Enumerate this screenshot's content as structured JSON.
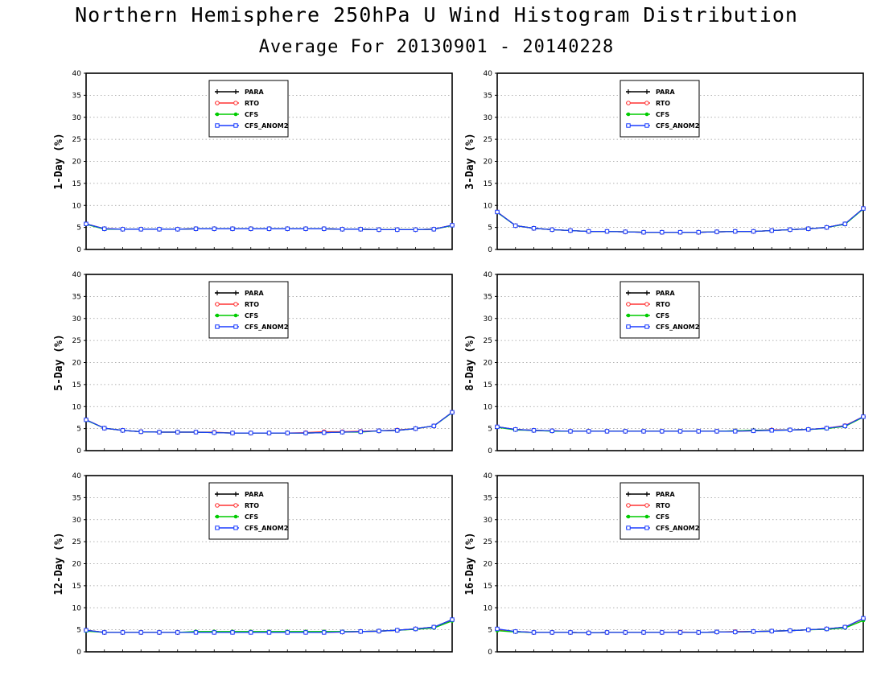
{
  "header": {
    "title": "Northern Hemisphere 250hPa U Wind Histogram Distribution",
    "subtitle": "Average For 20130901 - 20140228"
  },
  "legend_entries": [
    {
      "name": "PARA",
      "color": "#000000",
      "marker": "plus"
    },
    {
      "name": "RTO",
      "color": "#ff3333",
      "marker": "open-circle"
    },
    {
      "name": "CFS",
      "color": "#00cc00",
      "marker": "filled-circle"
    },
    {
      "name": "CFS_ANOM2",
      "color": "#1a3cff",
      "marker": "open-square"
    }
  ],
  "chart_data": [
    {
      "type": "line",
      "ylabel": "1-Day (%)",
      "ylim": [
        0,
        40
      ],
      "yticks": [
        0,
        5,
        10,
        15,
        20,
        25,
        30,
        35,
        40
      ],
      "grid": "horizontal-dotted",
      "legend_position": "top-center",
      "x": [
        1,
        2,
        3,
        4,
        5,
        6,
        7,
        8,
        9,
        10,
        11,
        12,
        13,
        14,
        15,
        16,
        17,
        18,
        19,
        20,
        21
      ],
      "series": [
        {
          "name": "PARA",
          "values": [
            5.8,
            4.7,
            4.6,
            4.6,
            4.6,
            4.6,
            4.7,
            4.7,
            4.7,
            4.7,
            4.7,
            4.7,
            4.7,
            4.7,
            4.6,
            4.6,
            4.5,
            4.5,
            4.5,
            4.6,
            5.5
          ]
        },
        {
          "name": "RTO",
          "values": [
            5.8,
            4.7,
            4.6,
            4.6,
            4.6,
            4.6,
            4.7,
            4.7,
            4.7,
            4.7,
            4.7,
            4.7,
            4.7,
            4.7,
            4.6,
            4.6,
            4.5,
            4.5,
            4.5,
            4.6,
            5.5
          ]
        },
        {
          "name": "CFS",
          "values": [
            5.7,
            4.6,
            4.6,
            4.6,
            4.6,
            4.6,
            4.7,
            4.7,
            4.7,
            4.7,
            4.7,
            4.7,
            4.7,
            4.7,
            4.6,
            4.6,
            4.5,
            4.5,
            4.5,
            4.6,
            5.4
          ]
        },
        {
          "name": "CFS_ANOM2",
          "values": [
            5.8,
            4.7,
            4.6,
            4.6,
            4.6,
            4.6,
            4.7,
            4.7,
            4.7,
            4.7,
            4.7,
            4.7,
            4.7,
            4.7,
            4.6,
            4.6,
            4.5,
            4.5,
            4.5,
            4.6,
            5.5
          ]
        }
      ]
    },
    {
      "type": "line",
      "ylabel": "3-Day (%)",
      "ylim": [
        0,
        40
      ],
      "yticks": [
        0,
        5,
        10,
        15,
        20,
        25,
        30,
        35,
        40
      ],
      "grid": "horizontal-dotted",
      "legend_position": "top-center",
      "x": [
        1,
        2,
        3,
        4,
        5,
        6,
        7,
        8,
        9,
        10,
        11,
        12,
        13,
        14,
        15,
        16,
        17,
        18,
        19,
        20,
        21
      ],
      "series": [
        {
          "name": "PARA",
          "values": [
            8.5,
            5.4,
            4.8,
            4.5,
            4.3,
            4.1,
            4.1,
            4.0,
            3.9,
            3.9,
            3.9,
            3.9,
            4.0,
            4.1,
            4.1,
            4.3,
            4.5,
            4.7,
            5.0,
            5.8,
            9.3
          ]
        },
        {
          "name": "RTO",
          "values": [
            8.5,
            5.4,
            4.8,
            4.5,
            4.3,
            4.1,
            4.1,
            4.0,
            3.9,
            3.9,
            3.9,
            3.9,
            4.0,
            4.1,
            4.1,
            4.3,
            4.5,
            4.7,
            5.0,
            5.8,
            9.3
          ]
        },
        {
          "name": "CFS",
          "values": [
            8.4,
            5.4,
            4.8,
            4.5,
            4.3,
            4.1,
            4.1,
            4.0,
            3.9,
            3.9,
            3.9,
            3.9,
            4.0,
            4.1,
            4.1,
            4.3,
            4.5,
            4.7,
            5.0,
            5.7,
            9.2
          ]
        },
        {
          "name": "CFS_ANOM2",
          "values": [
            8.5,
            5.4,
            4.8,
            4.5,
            4.3,
            4.1,
            4.1,
            4.0,
            3.9,
            3.9,
            3.9,
            3.9,
            4.0,
            4.1,
            4.1,
            4.3,
            4.5,
            4.7,
            5.0,
            5.8,
            9.3
          ]
        }
      ]
    },
    {
      "type": "line",
      "ylabel": "5-Day (%)",
      "ylim": [
        0,
        40
      ],
      "yticks": [
        0,
        5,
        10,
        15,
        20,
        25,
        30,
        35,
        40
      ],
      "grid": "horizontal-dotted",
      "legend_position": "top-center",
      "x": [
        1,
        2,
        3,
        4,
        5,
        6,
        7,
        8,
        9,
        10,
        11,
        12,
        13,
        14,
        15,
        16,
        17,
        18,
        19,
        20,
        21
      ],
      "series": [
        {
          "name": "PARA",
          "values": [
            7.0,
            5.1,
            4.6,
            4.3,
            4.2,
            4.2,
            4.2,
            4.1,
            4.0,
            4.0,
            4.0,
            4.0,
            4.0,
            4.1,
            4.2,
            4.3,
            4.5,
            4.6,
            5.0,
            5.6,
            8.7
          ]
        },
        {
          "name": "RTO",
          "values": [
            7.0,
            5.1,
            4.6,
            4.3,
            4.2,
            4.2,
            4.2,
            4.2,
            4.0,
            4.0,
            4.0,
            4.0,
            4.1,
            4.3,
            4.3,
            4.4,
            4.5,
            4.7,
            5.0,
            5.6,
            8.7
          ]
        },
        {
          "name": "CFS",
          "values": [
            6.9,
            5.1,
            4.6,
            4.3,
            4.2,
            4.2,
            4.2,
            4.1,
            4.0,
            4.0,
            4.0,
            4.0,
            4.0,
            4.1,
            4.2,
            4.2,
            4.5,
            4.6,
            5.0,
            5.6,
            8.6
          ]
        },
        {
          "name": "CFS_ANOM2",
          "values": [
            7.0,
            5.1,
            4.6,
            4.3,
            4.2,
            4.2,
            4.2,
            4.1,
            4.0,
            4.0,
            4.0,
            4.0,
            4.0,
            4.1,
            4.2,
            4.3,
            4.5,
            4.6,
            5.0,
            5.6,
            8.7
          ]
        }
      ]
    },
    {
      "type": "line",
      "ylabel": "8-Day (%)",
      "ylim": [
        0,
        40
      ],
      "yticks": [
        0,
        5,
        10,
        15,
        20,
        25,
        30,
        35,
        40
      ],
      "grid": "horizontal-dotted",
      "legend_position": "top-center",
      "x": [
        1,
        2,
        3,
        4,
        5,
        6,
        7,
        8,
        9,
        10,
        11,
        12,
        13,
        14,
        15,
        16,
        17,
        18,
        19,
        20,
        21
      ],
      "series": [
        {
          "name": "PARA",
          "values": [
            5.4,
            4.8,
            4.6,
            4.5,
            4.4,
            4.4,
            4.4,
            4.4,
            4.4,
            4.4,
            4.4,
            4.4,
            4.4,
            4.5,
            4.6,
            4.7,
            4.7,
            4.8,
            5.1,
            5.6,
            7.7
          ]
        },
        {
          "name": "RTO",
          "values": [
            5.4,
            4.8,
            4.6,
            4.5,
            4.4,
            4.4,
            4.4,
            4.4,
            4.4,
            4.4,
            4.4,
            4.4,
            4.4,
            4.4,
            4.5,
            4.7,
            4.7,
            4.8,
            5.1,
            5.7,
            7.7
          ]
        },
        {
          "name": "CFS",
          "values": [
            5.3,
            4.7,
            4.6,
            4.4,
            4.4,
            4.4,
            4.4,
            4.4,
            4.4,
            4.4,
            4.4,
            4.4,
            4.4,
            4.5,
            4.6,
            4.6,
            4.7,
            4.8,
            5.0,
            5.5,
            7.6
          ]
        },
        {
          "name": "CFS_ANOM2",
          "values": [
            5.4,
            4.8,
            4.6,
            4.5,
            4.4,
            4.4,
            4.4,
            4.4,
            4.4,
            4.4,
            4.4,
            4.4,
            4.4,
            4.4,
            4.5,
            4.6,
            4.7,
            4.8,
            5.1,
            5.6,
            7.7
          ]
        }
      ]
    },
    {
      "type": "line",
      "ylabel": "12-Day (%)",
      "ylim": [
        0,
        40
      ],
      "yticks": [
        0,
        5,
        10,
        15,
        20,
        25,
        30,
        35,
        40
      ],
      "grid": "horizontal-dotted",
      "legend_position": "top-center",
      "x": [
        1,
        2,
        3,
        4,
        5,
        6,
        7,
        8,
        9,
        10,
        11,
        12,
        13,
        14,
        15,
        16,
        17,
        18,
        19,
        20,
        21
      ],
      "series": [
        {
          "name": "PARA",
          "values": [
            4.9,
            4.4,
            4.4,
            4.4,
            4.4,
            4.4,
            4.5,
            4.5,
            4.5,
            4.5,
            4.5,
            4.5,
            4.5,
            4.5,
            4.5,
            4.6,
            4.7,
            4.9,
            5.2,
            5.6,
            7.3
          ]
        },
        {
          "name": "RTO",
          "values": [
            4.9,
            4.4,
            4.4,
            4.4,
            4.4,
            4.4,
            4.4,
            4.4,
            4.4,
            4.4,
            4.4,
            4.4,
            4.4,
            4.4,
            4.5,
            4.6,
            4.7,
            4.9,
            5.2,
            5.6,
            7.2
          ]
        },
        {
          "name": "CFS",
          "values": [
            4.7,
            4.4,
            4.4,
            4.4,
            4.4,
            4.4,
            4.6,
            4.6,
            4.6,
            4.6,
            4.6,
            4.6,
            4.6,
            4.6,
            4.6,
            4.6,
            4.7,
            4.9,
            5.1,
            5.4,
            7.0
          ]
        },
        {
          "name": "CFS_ANOM2",
          "values": [
            4.9,
            4.4,
            4.4,
            4.4,
            4.4,
            4.4,
            4.4,
            4.4,
            4.4,
            4.4,
            4.4,
            4.4,
            4.4,
            4.4,
            4.5,
            4.6,
            4.7,
            4.9,
            5.2,
            5.6,
            7.3
          ]
        }
      ]
    },
    {
      "type": "line",
      "ylabel": "16-Day (%)",
      "ylim": [
        0,
        40
      ],
      "yticks": [
        0,
        5,
        10,
        15,
        20,
        25,
        30,
        35,
        40
      ],
      "grid": "horizontal-dotted",
      "legend_position": "top-center",
      "x": [
        1,
        2,
        3,
        4,
        5,
        6,
        7,
        8,
        9,
        10,
        11,
        12,
        13,
        14,
        15,
        16,
        17,
        18,
        19,
        20,
        21
      ],
      "series": [
        {
          "name": "PARA",
          "values": [
            5.1,
            4.6,
            4.4,
            4.4,
            4.4,
            4.3,
            4.4,
            4.4,
            4.4,
            4.4,
            4.4,
            4.4,
            4.5,
            4.5,
            4.6,
            4.7,
            4.8,
            5.0,
            5.2,
            5.6,
            7.5
          ]
        },
        {
          "name": "RTO",
          "values": [
            5.1,
            4.6,
            4.4,
            4.4,
            4.4,
            4.3,
            4.4,
            4.4,
            4.4,
            4.4,
            4.5,
            4.4,
            4.5,
            4.6,
            4.6,
            4.7,
            4.8,
            5.0,
            5.2,
            5.6,
            7.5
          ]
        },
        {
          "name": "CFS",
          "values": [
            4.8,
            4.5,
            4.4,
            4.4,
            4.4,
            4.3,
            4.4,
            4.4,
            4.4,
            4.4,
            4.4,
            4.4,
            4.5,
            4.5,
            4.6,
            4.7,
            4.8,
            5.0,
            5.1,
            5.4,
            7.1
          ]
        },
        {
          "name": "CFS_ANOM2",
          "values": [
            5.2,
            4.6,
            4.4,
            4.4,
            4.4,
            4.3,
            4.4,
            4.4,
            4.4,
            4.4,
            4.4,
            4.4,
            4.5,
            4.5,
            4.6,
            4.7,
            4.8,
            5.0,
            5.2,
            5.6,
            7.6
          ]
        }
      ]
    }
  ]
}
